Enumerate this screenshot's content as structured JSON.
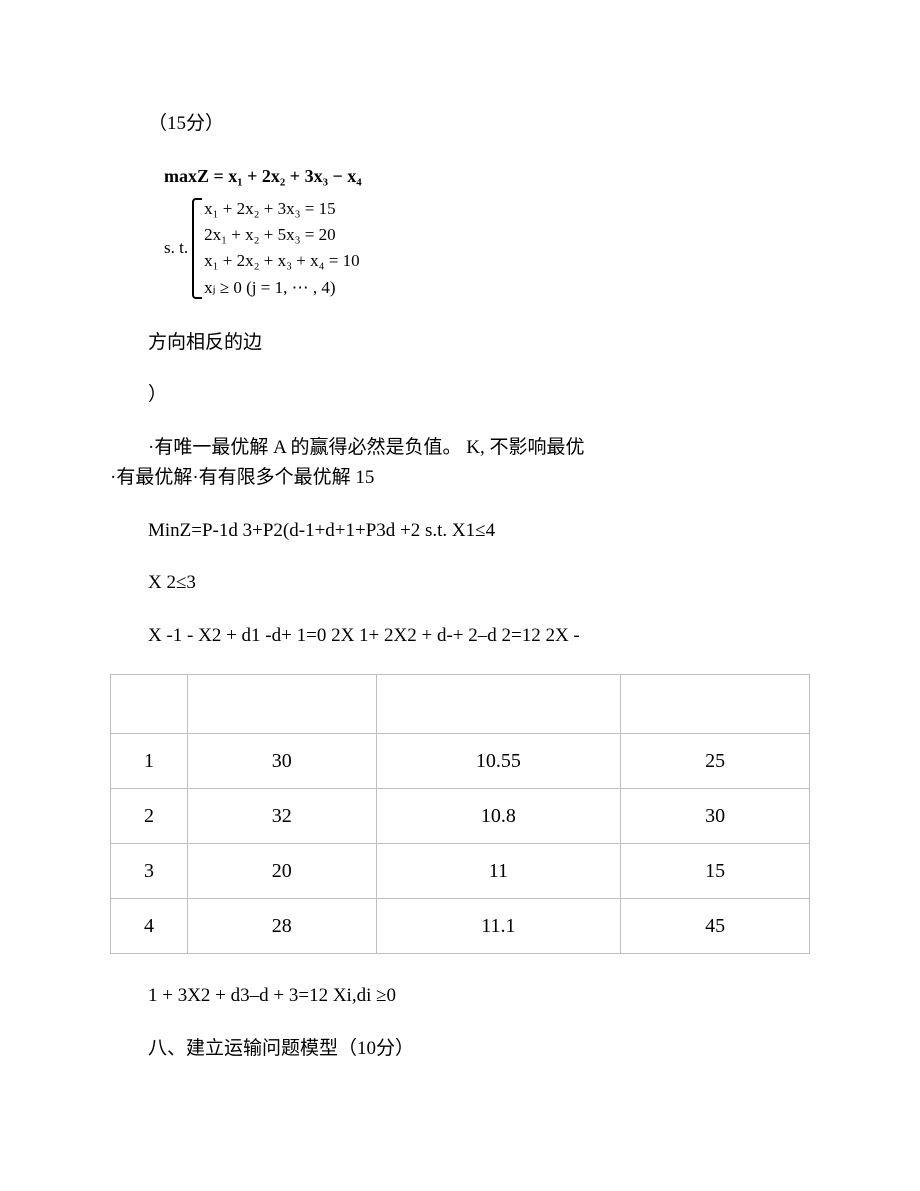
{
  "line_score": "（15分）",
  "math": {
    "objective": "maxZ = x₁ + 2x₂ + 3x₃ − x₄",
    "st_label": "s. t.",
    "eq1": "x₁ + 2x₂ + 3x₃ = 15",
    "eq2": "2x₁ + x₂ + 5x₃ = 20",
    "eq3": "x₁ + 2x₂ + x₃ + x₄ = 10",
    "eq4": "xⱼ ≥ 0 (j = 1, ⋯ , 4)"
  },
  "para_opposite": "方向相反的边",
  "para_paren": "）",
  "para_unique": "·有唯一最优解 A 的赢得必然是负值。 K, 不影响最优",
  "para_finite": "·有最优解·有有限多个最优解 15",
  "para_minz": "MinZ=P-1d 3+P2(d-1+d+1+P3d +2 s.t. X1≤4",
  "para_x2": "X 2≤3",
  "para_x1x2": "X -1 - X2 + d1 -d+ 1=0 2X 1+ 2X2 + d-+ 2–d 2=12 2X -",
  "table": {
    "columns": [
      "",
      "",
      "",
      ""
    ],
    "rows": [
      [
        "",
        "",
        "",
        ""
      ],
      [
        "1",
        "30",
        "10.55",
        "25"
      ],
      [
        "2",
        "32",
        "10.8",
        "30"
      ],
      [
        "3",
        "20",
        "11",
        "15"
      ],
      [
        "4",
        "28",
        "11.1",
        "45"
      ]
    ],
    "border_color": "#bfbfbf",
    "font_family": "Times New Roman",
    "col_widths_pct": [
      11,
      27,
      35,
      27
    ]
  },
  "para_after_table": "1 + 3X2 + d3–d + 3=12 Xi,di ≥0",
  "para_eight": "八、建立运输问题模型（10分）"
}
